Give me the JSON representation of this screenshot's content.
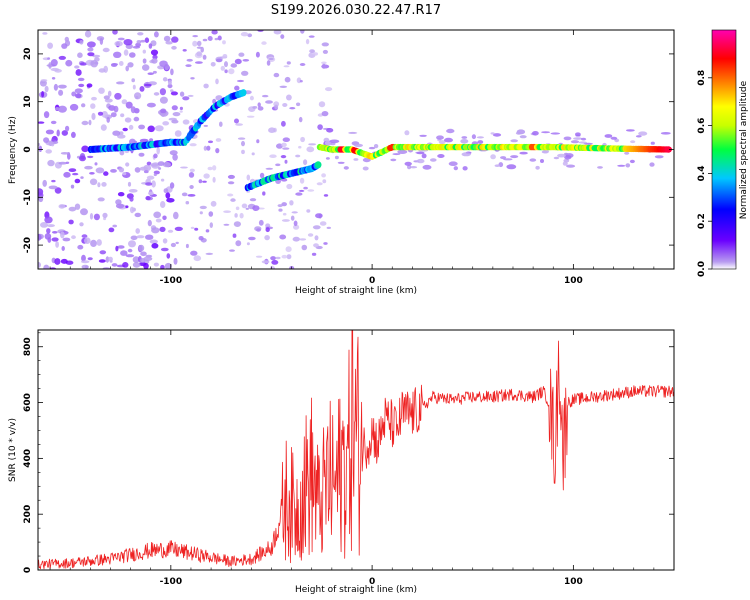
{
  "title": "S199.2026.030.22.47.R17",
  "chart_data": [
    {
      "type": "heatmap",
      "name": "spectrogram",
      "xlabel": "Height of straight line (km)",
      "ylabel": "Frequency (Hz)",
      "xlim": [
        -166,
        150
      ],
      "ylim": [
        -25,
        25
      ],
      "xticks": [
        -100,
        0,
        100
      ],
      "xtick_labels": [
        "-100",
        "0",
        "100"
      ],
      "yticks": [
        -20,
        -10,
        0,
        10,
        20
      ],
      "ytick_labels": [
        "-20",
        "-10",
        "0",
        "10",
        "20"
      ],
      "colorbar": {
        "label": "Normalized spectral amplitude",
        "range": [
          0,
          1
        ],
        "ticks": [
          0,
          0.2,
          0.4,
          0.6,
          0.8
        ],
        "tick_labels": [
          "0.0",
          "0.2",
          "0.4",
          "0.6",
          "0.8"
        ],
        "colors": [
          "#ffffff",
          "#b89cf0",
          "#6a00ff",
          "#0000ff",
          "#00c8ff",
          "#00ff40",
          "#c8ff00",
          "#ffff00",
          "#ff8000",
          "#ff0000",
          "#ff00b0"
        ]
      },
      "ridge_segments": [
        {
          "x": [
            -140,
            -120,
            -100,
            -92
          ],
          "y": [
            0,
            0.5,
            1.5,
            1.5
          ],
          "amplitude": 0.3
        },
        {
          "x": [
            -92,
            -85,
            -78,
            -70,
            -63
          ],
          "y": [
            2,
            6,
            9,
            11,
            12
          ],
          "amplitude": 0.3
        },
        {
          "x": [
            -62,
            -50,
            -40,
            -30,
            -26
          ],
          "y": [
            -8,
            -6,
            -5,
            -4,
            -3
          ],
          "amplitude": 0.35
        },
        {
          "x": [
            -26,
            -20,
            -10,
            0,
            10,
            30,
            60,
            90,
            120,
            148
          ],
          "y": [
            0.5,
            0,
            0,
            -1.5,
            0.5,
            0.5,
            0.5,
            0.5,
            0.2,
            0
          ],
          "amplitude": 0.6
        }
      ]
    },
    {
      "type": "line",
      "name": "snr",
      "xlabel": "Height of straight line (km)",
      "ylabel": "SNR (10 * v/v)",
      "xlim": [
        -166,
        150
      ],
      "ylim": [
        0,
        860
      ],
      "xticks": [
        -100,
        0,
        100
      ],
      "xtick_labels": [
        "-100",
        "0",
        "100"
      ],
      "yticks": [
        0,
        200,
        400,
        600,
        800
      ],
      "ytick_labels": [
        "0",
        "200",
        "400",
        "600",
        "800"
      ],
      "color": "#ee2222",
      "series": [
        {
          "name": "SNR",
          "x": [
            -166,
            -150,
            -130,
            -110,
            -100,
            -90,
            -80,
            -70,
            -60,
            -50,
            -42,
            -38,
            -34,
            -30,
            -26,
            -22,
            -18,
            -15,
            -12,
            -10,
            -8,
            -5,
            -2,
            0,
            3,
            6,
            9,
            12,
            15,
            20,
            25,
            30,
            40,
            50,
            60,
            70,
            80,
            85,
            88,
            91,
            93,
            95,
            97,
            100,
            110,
            120,
            130,
            140,
            150
          ],
          "y": [
            20,
            25,
            40,
            70,
            75,
            60,
            45,
            30,
            40,
            80,
            270,
            200,
            290,
            340,
            220,
            330,
            300,
            380,
            370,
            560,
            480,
            430,
            460,
            500,
            450,
            540,
            530,
            500,
            560,
            560,
            580,
            620,
            610,
            620,
            620,
            630,
            620,
            640,
            600,
            440,
            760,
            420,
            600,
            610,
            620,
            630,
            640,
            640,
            640
          ]
        }
      ]
    }
  ]
}
